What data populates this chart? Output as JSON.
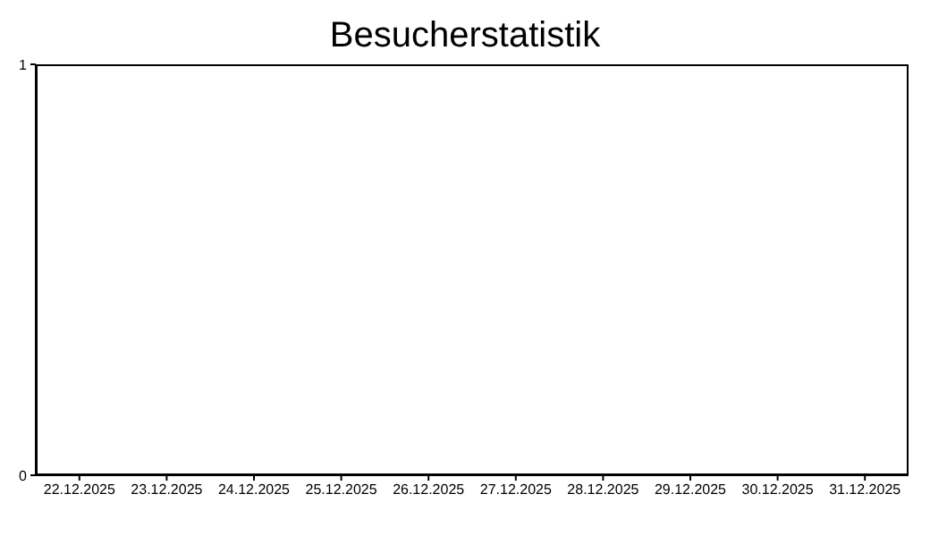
{
  "chart_data": {
    "type": "bar",
    "title": "Besucherstatistik",
    "categories": [
      "22.12.2025",
      "23.12.2025",
      "24.12.2025",
      "25.12.2025",
      "26.12.2025",
      "27.12.2025",
      "28.12.2025",
      "29.12.2025",
      "30.12.2025",
      "31.12.2025"
    ],
    "values": [
      0,
      0,
      0,
      0,
      0,
      0,
      0,
      0,
      0,
      0
    ],
    "ylim": [
      0,
      1
    ],
    "yticks": [
      0,
      1
    ],
    "grid": false
  }
}
